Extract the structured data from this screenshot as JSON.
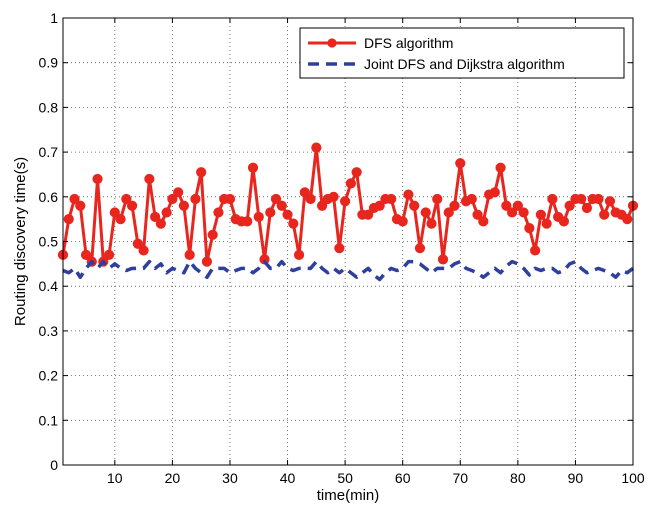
{
  "chart_data": {
    "type": "line",
    "xlabel": "time(min)",
    "ylabel": "Routing discovery time(s)",
    "xlim": [
      1,
      100
    ],
    "ylim": [
      0,
      1
    ],
    "xticks": [
      10,
      20,
      30,
      40,
      50,
      60,
      70,
      80,
      90,
      100
    ],
    "yticks": [
      0,
      0.1,
      0.2,
      0.3,
      0.4,
      0.5,
      0.6,
      0.7,
      0.8,
      0.9,
      1
    ],
    "grid": true,
    "legend_position": "top-right",
    "x": [
      1,
      2,
      3,
      4,
      5,
      6,
      7,
      8,
      9,
      10,
      11,
      12,
      13,
      14,
      15,
      16,
      17,
      18,
      19,
      20,
      21,
      22,
      23,
      24,
      25,
      26,
      27,
      28,
      29,
      30,
      31,
      32,
      33,
      34,
      35,
      36,
      37,
      38,
      39,
      40,
      41,
      42,
      43,
      44,
      45,
      46,
      47,
      48,
      49,
      50,
      51,
      52,
      53,
      54,
      55,
      56,
      57,
      58,
      59,
      60,
      61,
      62,
      63,
      64,
      65,
      66,
      67,
      68,
      69,
      70,
      71,
      72,
      73,
      74,
      75,
      76,
      77,
      78,
      79,
      80,
      81,
      82,
      83,
      84,
      85,
      86,
      87,
      88,
      89,
      90,
      91,
      92,
      93,
      94,
      95,
      96,
      97,
      98,
      99,
      100
    ],
    "series": [
      {
        "name": "DFS algorithm",
        "color": "#e8261e",
        "style": "solid",
        "marker": "circle",
        "values": [
          0.47,
          0.55,
          0.595,
          0.58,
          0.47,
          0.455,
          0.64,
          0.455,
          0.47,
          0.565,
          0.55,
          0.595,
          0.58,
          0.495,
          0.48,
          0.64,
          0.555,
          0.54,
          0.565,
          0.595,
          0.61,
          0.58,
          0.47,
          0.595,
          0.655,
          0.455,
          0.515,
          0.565,
          0.595,
          0.595,
          0.55,
          0.545,
          0.545,
          0.665,
          0.555,
          0.46,
          0.565,
          0.595,
          0.58,
          0.56,
          0.54,
          0.47,
          0.61,
          0.595,
          0.71,
          0.58,
          0.595,
          0.6,
          0.485,
          0.59,
          0.63,
          0.655,
          0.56,
          0.56,
          0.575,
          0.58,
          0.595,
          0.595,
          0.55,
          0.545,
          0.605,
          0.58,
          0.485,
          0.565,
          0.54,
          0.595,
          0.46,
          0.565,
          0.58,
          0.675,
          0.59,
          0.595,
          0.56,
          0.545,
          0.605,
          0.61,
          0.665,
          0.58,
          0.565,
          0.58,
          0.565,
          0.53,
          0.48,
          0.56,
          0.54,
          0.595,
          0.555,
          0.545,
          0.58,
          0.595,
          0.595,
          0.575,
          0.595,
          0.595,
          0.56,
          0.59,
          0.565,
          0.56,
          0.55,
          0.58
        ]
      },
      {
        "name": "Joint DFS and Dijkstra algorithm",
        "color": "#2f3f9e",
        "style": "dashed",
        "marker": "none",
        "values": [
          0.435,
          0.43,
          0.44,
          0.42,
          0.44,
          0.455,
          0.44,
          0.455,
          0.44,
          0.45,
          0.44,
          0.435,
          0.44,
          0.44,
          0.44,
          0.455,
          0.44,
          0.45,
          0.43,
          0.44,
          0.435,
          0.43,
          0.455,
          0.44,
          0.43,
          0.42,
          0.44,
          0.44,
          0.44,
          0.43,
          0.435,
          0.44,
          0.44,
          0.43,
          0.44,
          0.455,
          0.44,
          0.44,
          0.455,
          0.44,
          0.435,
          0.44,
          0.44,
          0.44,
          0.455,
          0.44,
          0.43,
          0.44,
          0.43,
          0.44,
          0.43,
          0.42,
          0.43,
          0.44,
          0.425,
          0.415,
          0.43,
          0.44,
          0.435,
          0.44,
          0.455,
          0.455,
          0.45,
          0.44,
          0.43,
          0.44,
          0.44,
          0.44,
          0.45,
          0.455,
          0.44,
          0.435,
          0.43,
          0.42,
          0.43,
          0.44,
          0.43,
          0.445,
          0.455,
          0.45,
          0.44,
          0.425,
          0.44,
          0.435,
          0.44,
          0.44,
          0.43,
          0.435,
          0.45,
          0.455,
          0.44,
          0.43,
          0.435,
          0.44,
          0.435,
          0.43,
          0.42,
          0.435,
          0.43,
          0.44
        ]
      }
    ]
  }
}
